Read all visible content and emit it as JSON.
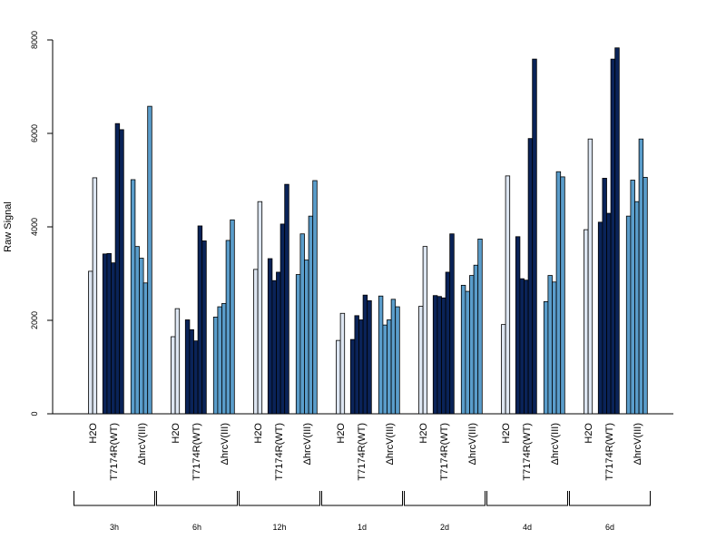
{
  "chart_data": {
    "type": "bar",
    "title": "",
    "xlabel": "",
    "ylabel": "Raw Signal",
    "ylim": [
      0,
      8000
    ],
    "yticks": [
      0,
      2000,
      4000,
      6000,
      8000
    ],
    "grid": false,
    "legend": "none",
    "group_tick_labels": [
      "H2O",
      "T7174R(WT)",
      "ΔhrcV(III)"
    ],
    "groups": [
      {
        "name": "3h",
        "bars": [
          {
            "subgroup": "H2O",
            "color": "#dde6f2",
            "values": [
              3050,
              5050
            ]
          },
          {
            "subgroup": "T7174R(WT)",
            "color": "#0a2358",
            "values": [
              3420,
              3430,
              3230,
              6210,
              6080
            ]
          },
          {
            "subgroup": "ΔhrcV(III)",
            "color": "#5a9dcb",
            "values": [
              5010,
              3580,
              3330,
              2800,
              6580
            ]
          }
        ]
      },
      {
        "name": "6h",
        "bars": [
          {
            "subgroup": "H2O",
            "color": "#dde6f2",
            "values": [
              1650,
              2250
            ]
          },
          {
            "subgroup": "T7174R(WT)",
            "color": "#0a2358",
            "values": [
              2010,
              1800,
              1560,
              4020,
              3700
            ]
          },
          {
            "subgroup": "ΔhrcV(III)",
            "color": "#5a9dcb",
            "values": [
              2070,
              2290,
              2360,
              3710,
              4150
            ]
          }
        ]
      },
      {
        "name": "12h",
        "bars": [
          {
            "subgroup": "H2O",
            "color": "#dde6f2",
            "values": [
              3090,
              4540
            ]
          },
          {
            "subgroup": "T7174R(WT)",
            "color": "#0a2358",
            "values": [
              3320,
              2850,
              3030,
              4060,
              4910
            ]
          },
          {
            "subgroup": "ΔhrcV(III)",
            "color": "#5a9dcb",
            "values": [
              2980,
              3850,
              3290,
              4230,
              4990
            ]
          }
        ]
      },
      {
        "name": "1d",
        "bars": [
          {
            "subgroup": "H2O",
            "color": "#dde6f2",
            "values": [
              1570,
              2150
            ]
          },
          {
            "subgroup": "T7174R(WT)",
            "color": "#0a2358",
            "values": [
              1590,
              2100,
              2010,
              2540,
              2420
            ]
          },
          {
            "subgroup": "ΔhrcV(III)",
            "color": "#5a9dcb",
            "values": [
              2520,
              1900,
              2010,
              2450,
              2290
            ]
          }
        ]
      },
      {
        "name": "2d",
        "bars": [
          {
            "subgroup": "H2O",
            "color": "#dde6f2",
            "values": [
              2300,
              3580
            ]
          },
          {
            "subgroup": "T7174R(WT)",
            "color": "#0a2358",
            "values": [
              2530,
              2510,
              2480,
              3030,
              3850
            ]
          },
          {
            "subgroup": "ΔhrcV(III)",
            "color": "#5a9dcb",
            "values": [
              2750,
              2620,
              2960,
              3180,
              3740
            ]
          }
        ]
      },
      {
        "name": "4d",
        "bars": [
          {
            "subgroup": "H2O",
            "color": "#dde6f2",
            "values": [
              1910,
              5090
            ]
          },
          {
            "subgroup": "T7174R(WT)",
            "color": "#0a2358",
            "values": [
              3790,
              2890,
              2860,
              5890,
              7590
            ]
          },
          {
            "subgroup": "ΔhrcV(III)",
            "color": "#5a9dcb",
            "values": [
              2400,
              2960,
              2820,
              5180,
              5070
            ]
          }
        ]
      },
      {
        "name": "6d",
        "bars": [
          {
            "subgroup": "H2O",
            "color": "#dde6f2",
            "values": [
              3940,
              5880
            ]
          },
          {
            "subgroup": "T7174R(WT)",
            "color": "#0a2358",
            "values": [
              4100,
              5040,
              4290,
              7590,
              7830
            ]
          },
          {
            "subgroup": "ΔhrcV(III)",
            "color": "#5a9dcb",
            "values": [
              4230,
              5000,
              4540,
              5880,
              5060
            ]
          }
        ]
      }
    ]
  }
}
